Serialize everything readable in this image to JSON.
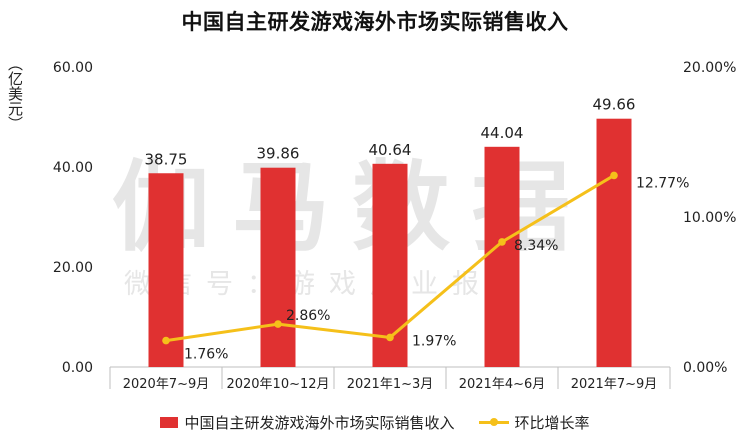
{
  "chart_data": {
    "type": "bar+line",
    "title": "中国自主研发游戏海外市场实际销售收入",
    "ylabel_left": "（亿美元）",
    "categories": [
      "2020年7~9月",
      "2020年10~12月",
      "2021年1~3月",
      "2021年4~6月",
      "2021年7~9月"
    ],
    "bar_series": {
      "name": "中国自主研发游戏海外市场实际销售收入",
      "values": [
        38.75,
        39.86,
        40.64,
        44.04,
        49.66
      ],
      "labels": [
        "38.75",
        "39.86",
        "40.64",
        "44.04",
        "49.66"
      ]
    },
    "line_series": {
      "name": "环比增长率",
      "values": [
        1.76,
        2.86,
        1.97,
        8.34,
        12.77
      ],
      "labels": [
        "1.76%",
        "2.86%",
        "1.97%",
        "8.34%",
        "12.77%"
      ]
    },
    "y_left": {
      "min": 0,
      "max": 60,
      "ticks": [
        0,
        20,
        40,
        60
      ],
      "tick_labels": [
        "0.00",
        "20.00",
        "40.00",
        "60.00"
      ]
    },
    "y_right": {
      "min": 0,
      "max": 20,
      "ticks": [
        0,
        10,
        20
      ],
      "tick_labels": [
        "0.00%",
        "10.00%",
        "20.00%"
      ]
    },
    "grid": false,
    "legend_position": "bottom"
  },
  "watermark": {
    "main": "伽马数据",
    "sub": "微信号：游戏产业报告"
  },
  "colors": {
    "bar": "#e03131",
    "line": "#f5c01a",
    "text": "#222222",
    "axis": "#bfbfbf"
  }
}
